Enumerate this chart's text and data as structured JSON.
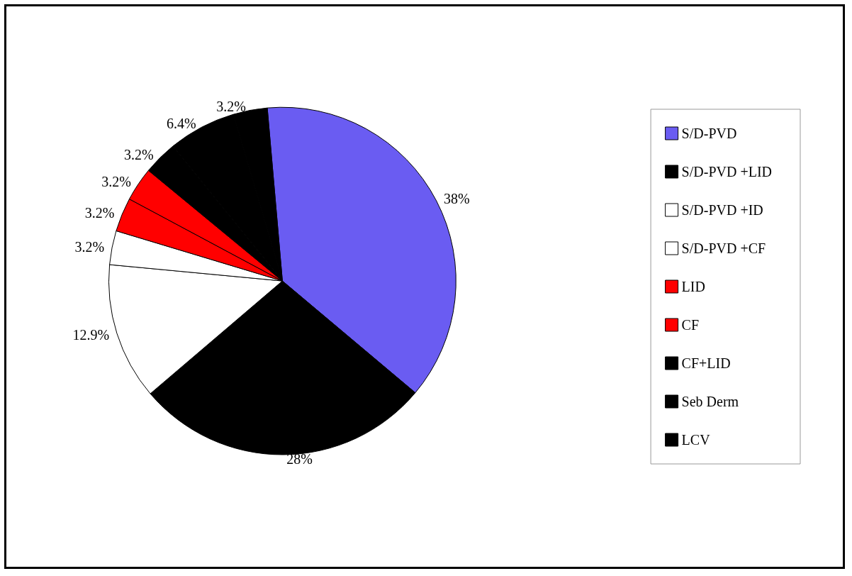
{
  "chart_data": {
    "type": "pie",
    "categories": [
      "S/D-PVD",
      "S/D-PVD +LID",
      "S/D-PVD +ID",
      "S/D-PVD +CF",
      "LID",
      "CF",
      "CF+LID",
      "Seb Derm",
      "LCV"
    ],
    "values": [
      38,
      28,
      12.9,
      3.2,
      3.2,
      3.2,
      3.2,
      6.4,
      3.2
    ],
    "value_labels": [
      "38%",
      "28%",
      "12.9%",
      "3.2%",
      "3.2%",
      "3.2%",
      "3.2%",
      "6.4%",
      "3.2%"
    ],
    "colors": [
      "#6a5cf2",
      "#000000",
      "#ffffff",
      "#ffffff",
      "#ff0000",
      "#ff0000",
      "#000000",
      "#000000",
      "#000000"
    ],
    "legend": "right"
  }
}
